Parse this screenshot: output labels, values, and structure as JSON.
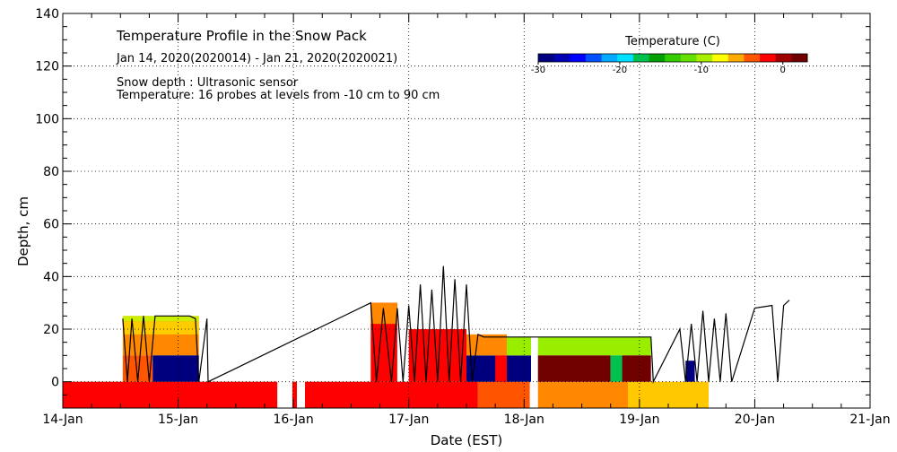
{
  "chart_data": {
    "type": "heatmap",
    "title": "Temperature Profile in the Snow Pack",
    "subtitle": "Jan 14, 2020(2020014) - Jan 21, 2020(2020021)",
    "annotations": [
      "Snow depth : Ultrasonic sensor",
      "Temperature: 16 probes at levels from -10 cm to 90 cm"
    ],
    "xlabel": "Date (EST)",
    "ylabel": "Depth, cm",
    "xlim": [
      0,
      7
    ],
    "ylim": [
      -10,
      140
    ],
    "x_ticks": [
      "14-Jan",
      "15-Jan",
      "16-Jan",
      "17-Jan",
      "18-Jan",
      "19-Jan",
      "20-Jan",
      "21-Jan"
    ],
    "y_ticks": [
      0,
      20,
      40,
      60,
      80,
      100,
      120,
      140
    ],
    "grid": true,
    "colorbar": {
      "label": "Temperature (C)",
      "ticks": [
        -30,
        -20,
        -10,
        0
      ],
      "range": [
        -30,
        3
      ],
      "colors": [
        "#00007f",
        "#0000b4",
        "#0000ff",
        "#0050ff",
        "#00aaff",
        "#00e0ff",
        "#00c050",
        "#00a000",
        "#33cc00",
        "#66e000",
        "#aaee00",
        "#ffff00",
        "#ffaa00",
        "#ff5500",
        "#ff0000",
        "#a00000",
        "#700000"
      ]
    },
    "ground_temp_regions": [
      {
        "x0": 0.0,
        "x1": 1.86,
        "color": "#ff0000"
      },
      {
        "x0": 1.99,
        "x1": 2.03,
        "color": "#ff0000"
      },
      {
        "x0": 2.1,
        "x1": 3.6,
        "color": "#ff0000"
      },
      {
        "x0": 3.6,
        "x1": 4.05,
        "color": "#ff5500"
      },
      {
        "x0": 4.05,
        "x1": 4.12,
        "color": "#ffffff"
      },
      {
        "x0": 4.12,
        "x1": 4.9,
        "color": "#ff8800"
      },
      {
        "x0": 4.9,
        "x1": 5.6,
        "color": "#ffc800"
      }
    ],
    "ground_band_depth": [
      -10,
      0
    ],
    "snow_regions": [
      {
        "x0": 0.52,
        "x1": 1.18,
        "y0": 10,
        "y1": 25,
        "color": "#ff8800"
      },
      {
        "x0": 0.52,
        "x1": 1.18,
        "y0": 18,
        "y1": 23,
        "color": "#ffcc00"
      },
      {
        "x0": 0.52,
        "x1": 1.18,
        "y0": 23,
        "y1": 25,
        "color": "#ccee00"
      },
      {
        "x0": 0.52,
        "x1": 0.78,
        "y0": 0,
        "y1": 10,
        "color": "#ff5500"
      },
      {
        "x0": 0.78,
        "x1": 1.18,
        "y0": 0,
        "y1": 10,
        "color": "#00007f"
      },
      {
        "x0": 2.67,
        "x1": 2.9,
        "y0": 0,
        "y1": 30,
        "color": "#ff0000"
      },
      {
        "x0": 2.67,
        "x1": 2.9,
        "y0": 22,
        "y1": 30,
        "color": "#ff8800"
      },
      {
        "x0": 3.0,
        "x1": 3.5,
        "y0": 0,
        "y1": 20,
        "color": "#ff0000"
      },
      {
        "x0": 3.5,
        "x1": 3.85,
        "y0": 0,
        "y1": 10,
        "color": "#00007f"
      },
      {
        "x0": 3.5,
        "x1": 3.85,
        "y0": 10,
        "y1": 18,
        "color": "#ff8800"
      },
      {
        "x0": 3.75,
        "x1": 3.85,
        "y0": 0,
        "y1": 10,
        "color": "#ff0000"
      },
      {
        "x0": 3.85,
        "x1": 4.06,
        "y0": 0,
        "y1": 10,
        "color": "#00007f"
      },
      {
        "x0": 3.85,
        "x1": 5.1,
        "y0": 10,
        "y1": 17,
        "color": "#99ee00"
      },
      {
        "x0": 4.06,
        "x1": 4.12,
        "y0": 0,
        "y1": 17,
        "color": "#ffffff"
      },
      {
        "x0": 4.12,
        "x1": 4.75,
        "y0": 0,
        "y1": 10,
        "color": "#700000"
      },
      {
        "x0": 4.75,
        "x1": 4.85,
        "y0": 0,
        "y1": 10,
        "color": "#00c050"
      },
      {
        "x0": 4.85,
        "x1": 5.1,
        "y0": 0,
        "y1": 10,
        "color": "#700000"
      },
      {
        "x0": 5.4,
        "x1": 5.48,
        "y0": 0,
        "y1": 8,
        "color": "#00007f"
      }
    ],
    "snow_depth": {
      "x": [
        0.52,
        0.56,
        0.6,
        0.65,
        0.7,
        0.75,
        0.8,
        0.9,
        1.0,
        1.1,
        1.15,
        1.18,
        1.25,
        1.26,
        2.67,
        2.72,
        2.78,
        2.85,
        2.9,
        2.95,
        3.0,
        3.05,
        3.1,
        3.15,
        3.2,
        3.25,
        3.3,
        3.35,
        3.4,
        3.45,
        3.5,
        3.55,
        3.6,
        3.65,
        3.7,
        3.8,
        4.0,
        4.3,
        4.6,
        4.9,
        5.1,
        5.12,
        5.35,
        5.4,
        5.45,
        5.5,
        5.55,
        5.6,
        5.65,
        5.7,
        5.75,
        5.8,
        6.0,
        6.15,
        6.2,
        6.25,
        6.3
      ],
      "y": [
        24,
        0,
        24,
        0,
        25,
        0,
        25,
        25,
        25,
        25,
        24,
        0,
        24,
        0,
        30,
        0,
        28,
        0,
        28,
        0,
        29,
        0,
        37,
        0,
        35,
        0,
        44,
        0,
        39,
        0,
        37,
        0,
        18,
        17,
        17,
        17,
        17,
        17,
        17,
        17,
        17,
        0,
        20,
        0,
        22,
        0,
        27,
        0,
        24,
        0,
        26,
        0,
        28,
        29,
        0,
        29,
        31
      ]
    }
  }
}
